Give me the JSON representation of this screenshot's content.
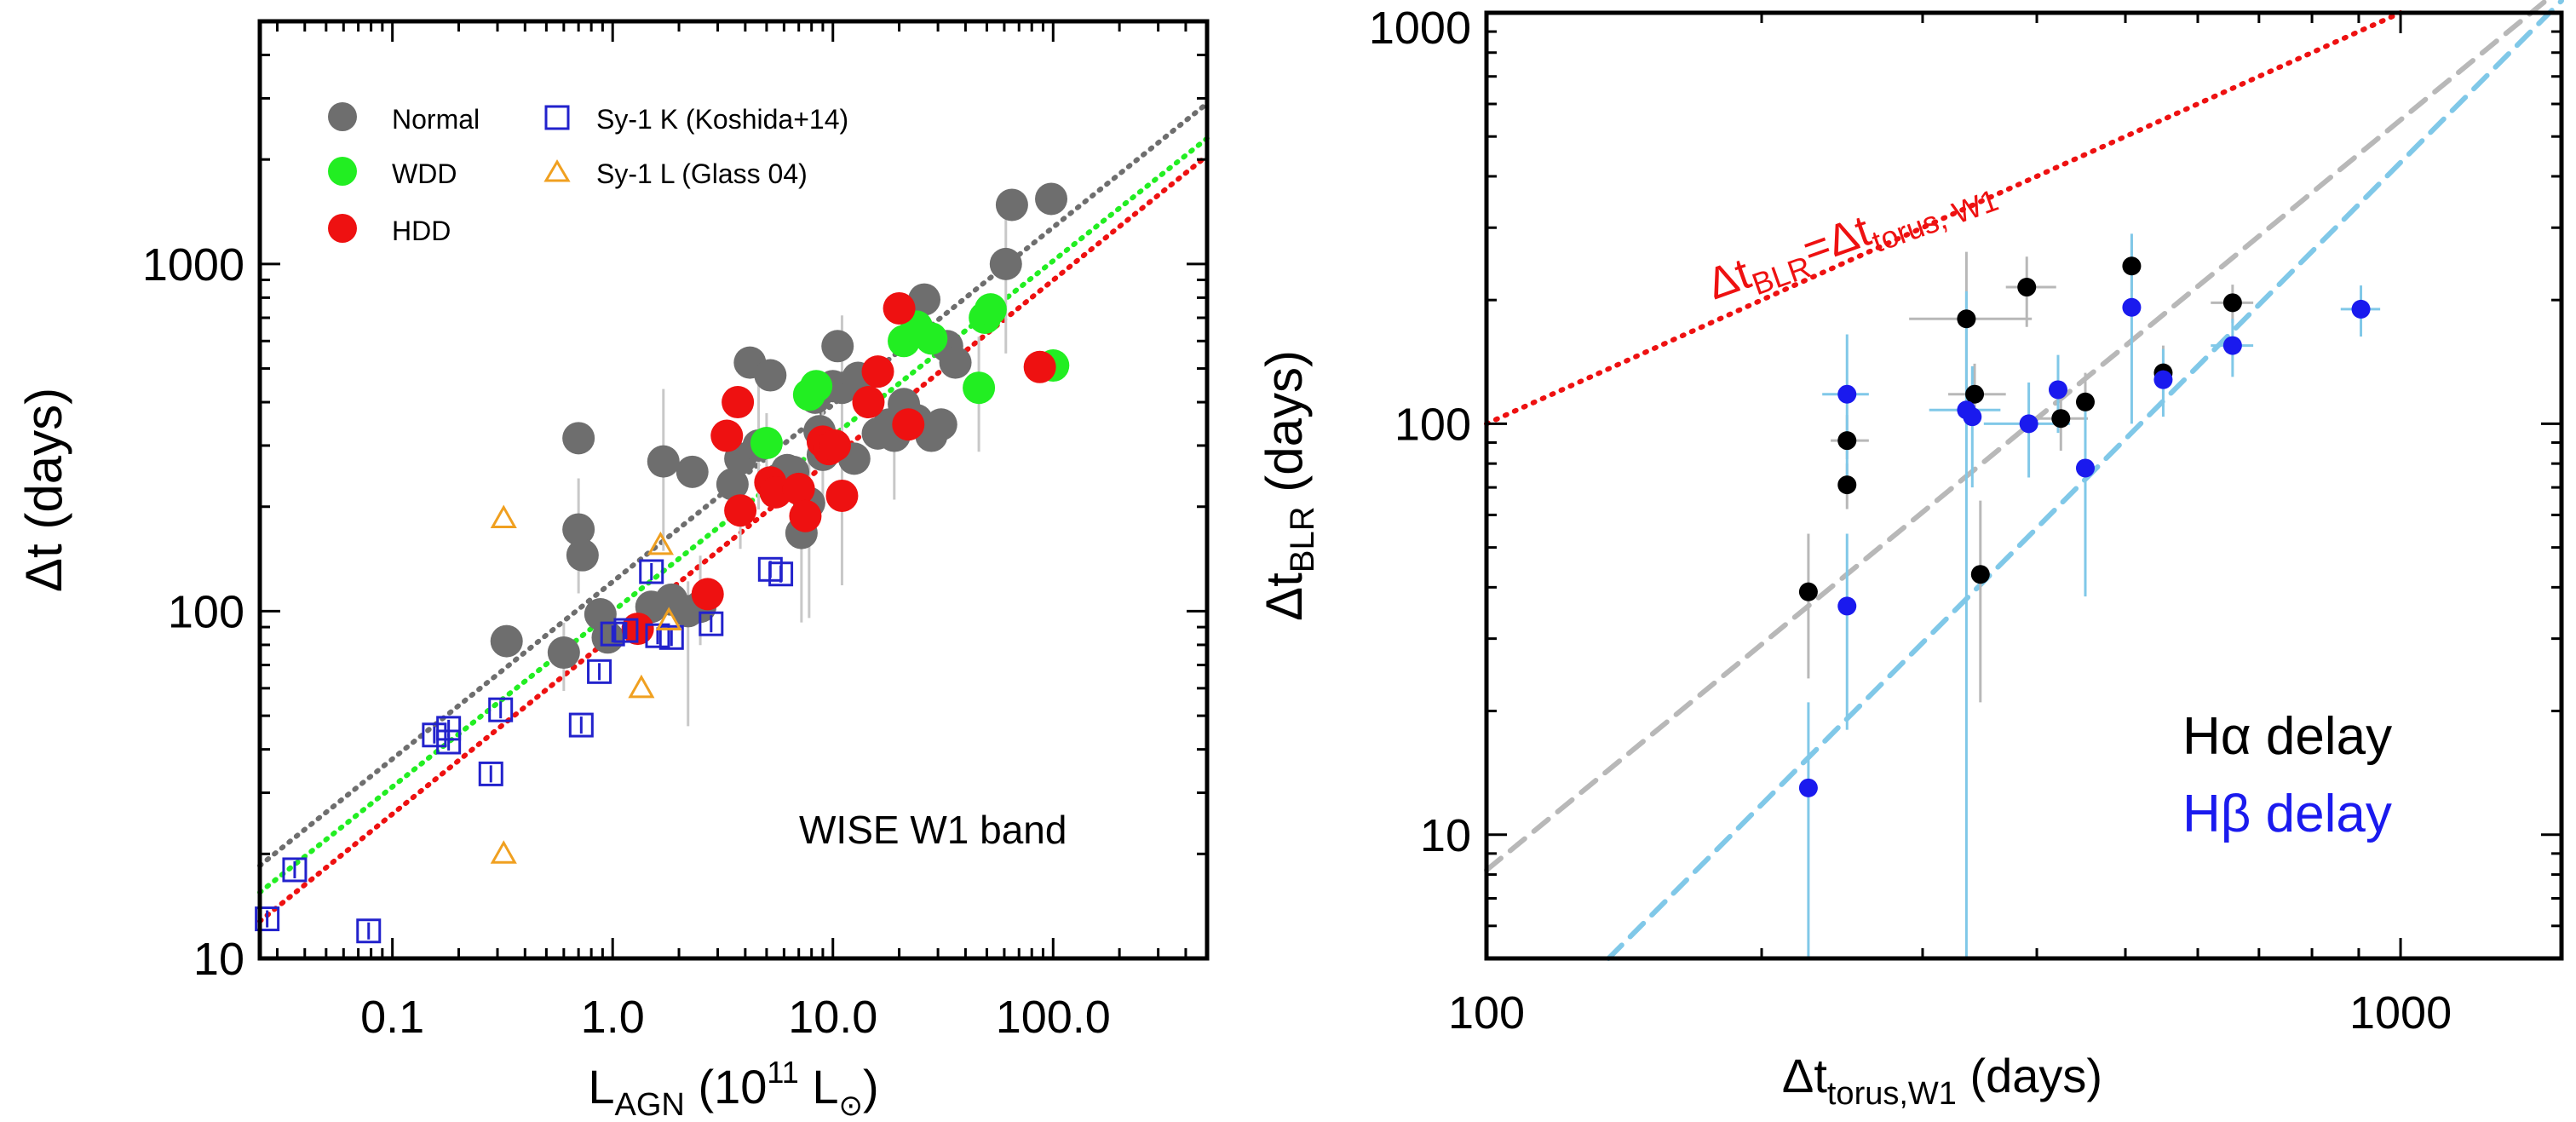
{
  "chart_data": [
    {
      "type": "scatter",
      "scale": "log-log",
      "title": "",
      "xlabel": "L",
      "xlabel_sub": "AGN",
      "xlabel_unit_open": " (10",
      "xlabel_exp": "11",
      "xlabel_unit_close": " L",
      "xlabel_sun": "⊙",
      "xlabel_end": ")",
      "ylabel": "Δt (days)",
      "xlim": [
        0.025,
        500
      ],
      "ylim": [
        10,
        5000
      ],
      "x_ticks": [
        {
          "value": 0.1,
          "label": "0.1"
        },
        {
          "value": 1,
          "label": "1.0"
        },
        {
          "value": 10,
          "label": "10.0"
        },
        {
          "value": 100,
          "label": "100.0"
        }
      ],
      "y_ticks": [
        {
          "value": 10,
          "label": "10"
        },
        {
          "value": 100,
          "label": "100"
        },
        {
          "value": 1000,
          "label": "1000"
        }
      ],
      "annotation": "WISE W1 band",
      "legend": [
        {
          "label": "Normal",
          "color": "#6e6e6e",
          "marker": "circle"
        },
        {
          "label": "WDD",
          "color": "#22ee22",
          "marker": "circle"
        },
        {
          "label": "HDD",
          "color": "#ee1111",
          "marker": "circle"
        },
        {
          "label": "Sy-1 K (Koshida+14)",
          "color": "#2222cc",
          "marker": "square"
        },
        {
          "label": "Sy-1 L (Glass 04)",
          "color": "#f0a020",
          "marker": "triangle"
        }
      ],
      "fit_lines": [
        {
          "name": "Normal fit",
          "color": "#6e6e6e",
          "x": [
            0.025,
            500
          ],
          "y": [
            18.5,
            2900
          ]
        },
        {
          "name": "WDD fit",
          "color": "#22ee22",
          "x": [
            0.025,
            500
          ],
          "y": [
            15.5,
            2300
          ]
        },
        {
          "name": "HDD fit",
          "color": "#ee1111",
          "x": [
            0.025,
            500
          ],
          "y": [
            12.8,
            2050
          ]
        }
      ],
      "series": [
        {
          "name": "Normal",
          "color": "#6e6e6e",
          "marker": "circle",
          "points": [
            [
              0.33,
              82
            ],
            [
              0.6,
              76
            ],
            [
              0.7,
              315
            ],
            [
              0.7,
              172
            ],
            [
              0.73,
              145
            ],
            [
              0.88,
              98
            ],
            [
              0.95,
              84
            ],
            [
              1.5,
              103
            ],
            [
              1.7,
              270
            ],
            [
              1.85,
              108
            ],
            [
              2.2,
              100
            ],
            [
              2.3,
              252
            ],
            [
              2.5,
              103
            ],
            [
              3.5,
              232
            ],
            [
              3.8,
              275
            ],
            [
              4.2,
              520
            ],
            [
              4.6,
              300
            ],
            [
              5.2,
              478
            ],
            [
              5.7,
              240
            ],
            [
              6.2,
              255
            ],
            [
              6.6,
              252
            ],
            [
              7.2,
              168
            ],
            [
              7.8,
              205
            ],
            [
              8.3,
              412
            ],
            [
              8.7,
              330
            ],
            [
              9,
              282
            ],
            [
              9.5,
              300
            ],
            [
              10,
              445
            ],
            [
              10.5,
              580
            ],
            [
              11,
              440
            ],
            [
              12.5,
              275
            ],
            [
              13,
              470
            ],
            [
              16,
              325
            ],
            [
              17,
              330
            ],
            [
              18,
              345
            ],
            [
              19,
              320
            ],
            [
              21,
              395
            ],
            [
              24,
              355
            ],
            [
              26,
              790
            ],
            [
              28,
              320
            ],
            [
              31,
              345
            ],
            [
              33,
              580
            ],
            [
              36,
              520
            ],
            [
              61,
              1000
            ],
            [
              65,
              1480
            ],
            [
              98,
              1540
            ]
          ]
        },
        {
          "name": "WDD",
          "color": "#22ee22",
          "marker": "circle",
          "points": [
            [
              5,
              305
            ],
            [
              7.8,
              420
            ],
            [
              8.4,
              445
            ],
            [
              21,
              600
            ],
            [
              24,
              660
            ],
            [
              28,
              610
            ],
            [
              46,
              440
            ],
            [
              49,
              700
            ],
            [
              52,
              740
            ],
            [
              100,
              510
            ]
          ]
        },
        {
          "name": "HDD",
          "color": "#ee1111",
          "marker": "circle",
          "points": [
            [
              1.3,
              89
            ],
            [
              2.7,
              112
            ],
            [
              3.3,
              320
            ],
            [
              3.7,
              400
            ],
            [
              3.8,
              195
            ],
            [
              5.2,
              235
            ],
            [
              5.5,
              220
            ],
            [
              7,
              225
            ],
            [
              7.5,
              188
            ],
            [
              9,
              308
            ],
            [
              9.6,
              293
            ],
            [
              10.2,
              300
            ],
            [
              11,
              215
            ],
            [
              14.5,
              400
            ],
            [
              16,
              490
            ],
            [
              20,
              745
            ],
            [
              22,
              345
            ],
            [
              87,
              505
            ]
          ]
        },
        {
          "name": "Sy-1 K (Koshida+14)",
          "color": "#2222cc",
          "marker": "square",
          "points": [
            [
              0.027,
              13
            ],
            [
              0.036,
              18
            ],
            [
              0.078,
              12
            ],
            [
              0.155,
              44
            ],
            [
              0.18,
              46
            ],
            [
              0.18,
              42
            ],
            [
              0.28,
              34
            ],
            [
              0.31,
              52
            ],
            [
              0.72,
              47
            ],
            [
              0.87,
              67
            ],
            [
              1.0,
              86
            ],
            [
              1.15,
              88
            ],
            [
              1.5,
              130
            ],
            [
              1.6,
              85
            ],
            [
              1.85,
              84
            ],
            [
              2.8,
              92
            ],
            [
              5.2,
              132
            ],
            [
              5.8,
              128
            ]
          ]
        },
        {
          "name": "Sy-1 L (Glass 04)",
          "color": "#f0a020",
          "marker": "triangle",
          "points": [
            [
              0.32,
              185
            ],
            [
              0.32,
              20
            ],
            [
              1.35,
              60
            ],
            [
              1.65,
              155
            ],
            [
              1.8,
              94
            ]
          ]
        }
      ]
    },
    {
      "type": "scatter",
      "scale": "log-log",
      "title": "",
      "xlabel": "Δt",
      "xlabel_sub": "torus,W1",
      "xlabel_end": " (days)",
      "ylabel": "Δt",
      "ylabel_sub": "BLR",
      "ylabel_end": " (days)",
      "xlim": [
        100,
        1500
      ],
      "ylim": [
        5,
        1000
      ],
      "x_ticks": [
        {
          "value": 100,
          "label": "100"
        },
        {
          "value": 1000,
          "label": "1000"
        }
      ],
      "y_ticks": [
        {
          "value": 10,
          "label": "10"
        },
        {
          "value": 100,
          "label": "100"
        },
        {
          "value": 1000,
          "label": "1000"
        }
      ],
      "one_to_one_label": {
        "main": "Δt",
        "sub1": "BLR",
        "eq": "=Δt",
        "sub2": "torus, W1"
      },
      "legend": [
        {
          "label": "Hα delay",
          "color": "#000000"
        },
        {
          "label": "Hβ delay",
          "color": "#1a1aee"
        }
      ],
      "lines": [
        {
          "name": "one-to-one",
          "color": "#ee1111",
          "style": "dotted",
          "x": [
            100,
            1000
          ],
          "y": [
            100,
            1000
          ]
        },
        {
          "name": "Hα fit",
          "color": "#b8b8b8",
          "style": "dashed",
          "x": [
            100,
            1500
          ],
          "y": [
            8.2,
            1150
          ]
        },
        {
          "name": "Hβ fit",
          "color": "#80c8e8",
          "style": "dashed",
          "x": [
            136,
            1500
          ],
          "y": [
            5,
            1070
          ]
        }
      ],
      "series": [
        {
          "name": "Hα delay",
          "color": "#000000",
          "marker": "circle",
          "points": [
            {
              "x": 225,
              "y": 39,
              "ylo": 24,
              "yhi": 54
            },
            {
              "x": 248,
              "y": 91,
              "xlo": 238,
              "xhi": 262,
              "ylo": 82,
              "yhi": 105
            },
            {
              "x": 248,
              "y": 71,
              "ylo": 62,
              "yhi": 80
            },
            {
              "x": 335,
              "y": 180,
              "xlo": 290,
              "xhi": 395,
              "ylo": 100,
              "yhi": 262
            },
            {
              "x": 342,
              "y": 118,
              "xlo": 320,
              "xhi": 370,
              "ylo": 100,
              "yhi": 140
            },
            {
              "x": 347,
              "y": 43,
              "ylo": 21,
              "yhi": 65
            },
            {
              "x": 390,
              "y": 215,
              "xlo": 370,
              "xhi": 420,
              "ylo": 172,
              "yhi": 255
            },
            {
              "x": 425,
              "y": 103,
              "xlo": 398,
              "xhi": 455,
              "ylo": 86,
              "yhi": 120
            },
            {
              "x": 452,
              "y": 113,
              "ylo": 93,
              "yhi": 133
            },
            {
              "x": 508,
              "y": 242,
              "ylo": 210,
              "yhi": 280
            },
            {
              "x": 550,
              "y": 133,
              "ylo": 110,
              "yhi": 155
            },
            {
              "x": 655,
              "y": 197,
              "xlo": 620,
              "xhi": 690,
              "ylo": 176,
              "yhi": 218
            }
          ]
        },
        {
          "name": "Hβ delay",
          "color": "#1a1aee",
          "marker": "circle",
          "points": [
            {
              "x": 225,
              "y": 13,
              "ylo": 5,
              "yhi": 21
            },
            {
              "x": 248,
              "y": 118,
              "xlo": 233,
              "xhi": 262,
              "ylo": 72,
              "yhi": 165
            },
            {
              "x": 248,
              "y": 36,
              "ylo": 18,
              "yhi": 54
            },
            {
              "x": 335,
              "y": 108,
              "xlo": 305,
              "xhi": 365,
              "ylo": 5,
              "yhi": 210
            },
            {
              "x": 340,
              "y": 104,
              "ylo": 70,
              "yhi": 138
            },
            {
              "x": 392,
              "y": 100,
              "xlo": 350,
              "xhi": 435,
              "ylo": 74,
              "yhi": 126
            },
            {
              "x": 422,
              "y": 121,
              "ylo": 95,
              "yhi": 147
            },
            {
              "x": 452,
              "y": 78,
              "ylo": 38,
              "yhi": 118
            },
            {
              "x": 508,
              "y": 192,
              "ylo": 100,
              "yhi": 290
            },
            {
              "x": 550,
              "y": 128,
              "ylo": 104,
              "yhi": 152
            },
            {
              "x": 655,
              "y": 155,
              "xlo": 620,
              "xhi": 690,
              "ylo": 130,
              "yhi": 180
            },
            {
              "x": 905,
              "y": 190,
              "xlo": 860,
              "xhi": 950,
              "ylo": 163,
              "yhi": 217
            }
          ]
        }
      ]
    }
  ]
}
